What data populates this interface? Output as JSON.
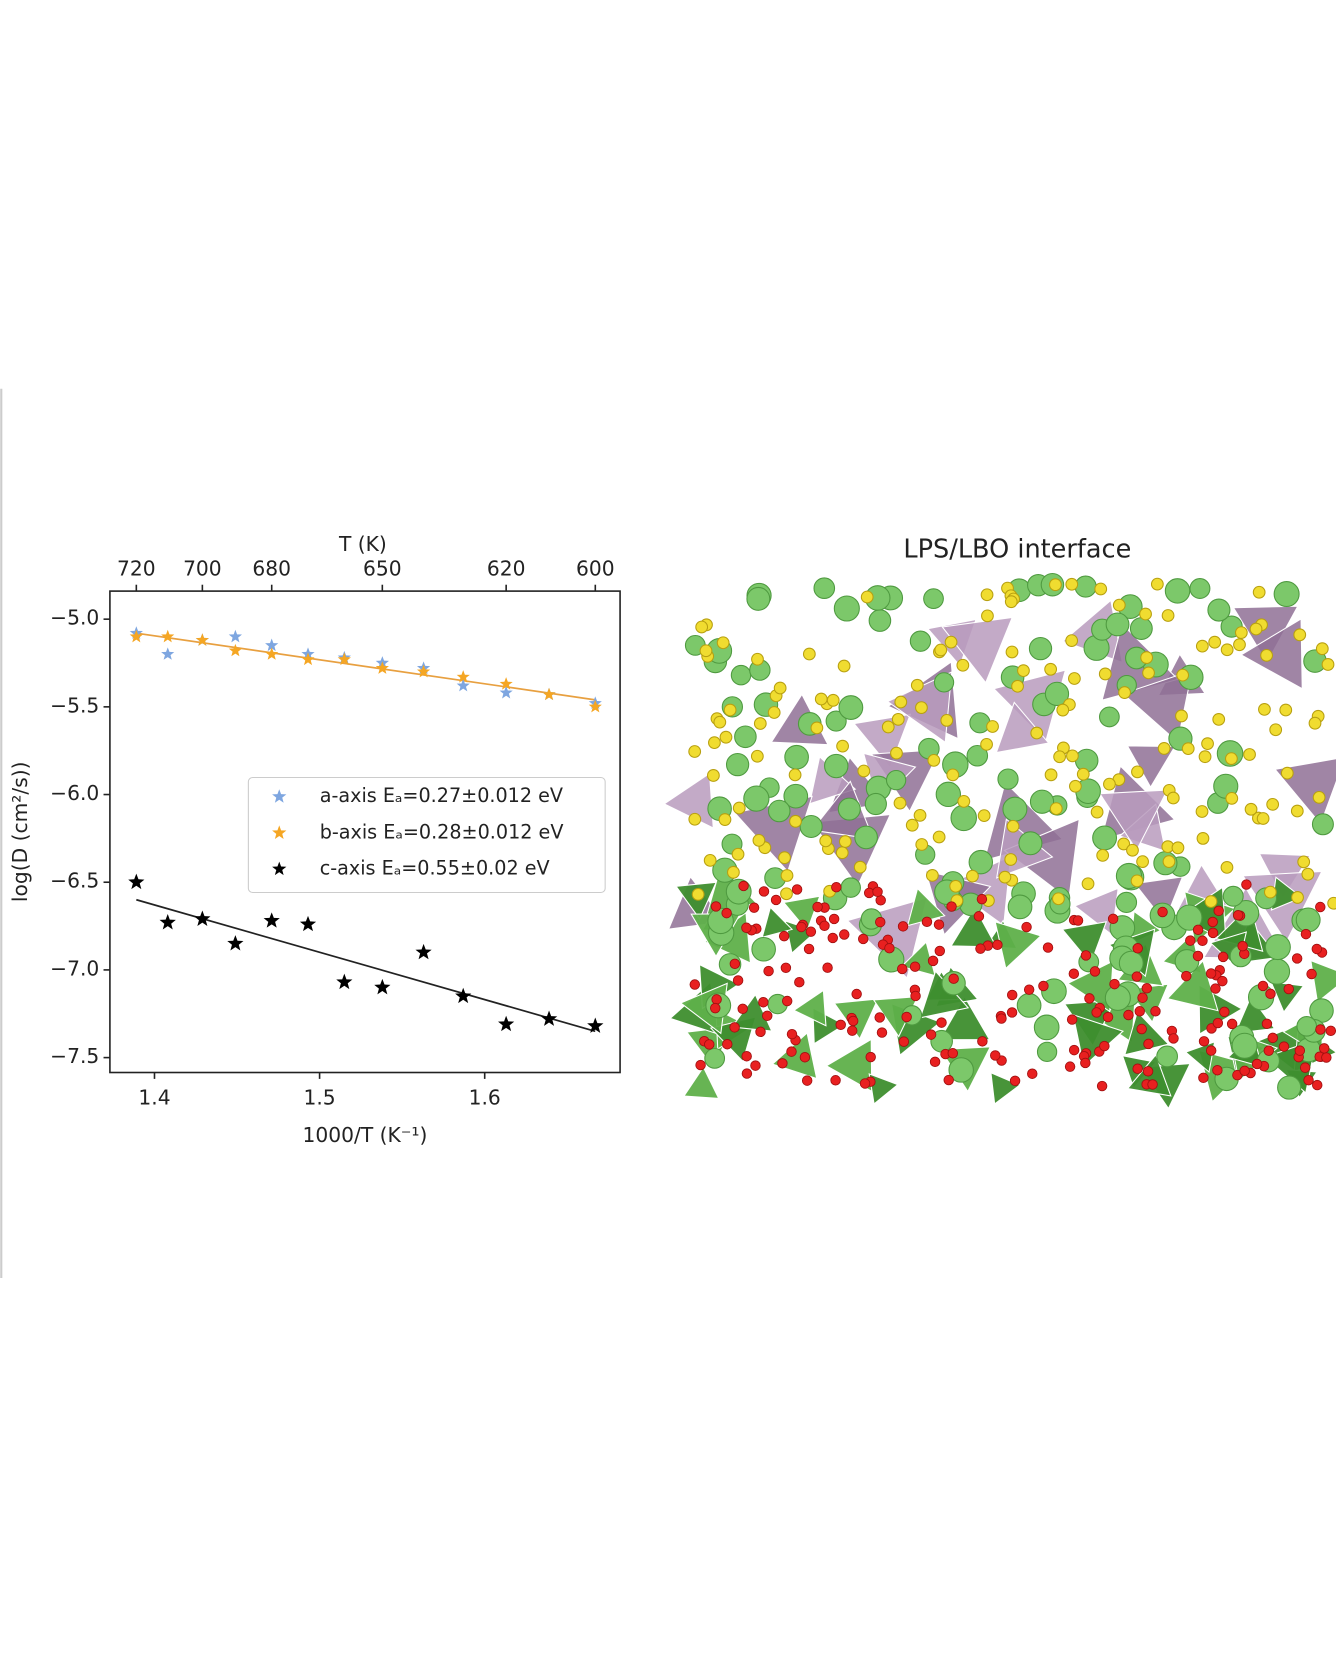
{
  "chart_data": {
    "type": "scatter",
    "x_label": "1000/T (K⁻¹)",
    "y_label": "log(D (cm²/s))",
    "top_x_label": "T (K)",
    "xlim": [
      1.373,
      1.682
    ],
    "ylim": [
      -7.585,
      -4.84
    ],
    "xticks": [
      1.4,
      1.5,
      1.6
    ],
    "yticks": [
      {
        "value": -5.0,
        "label": "−5.0"
      },
      {
        "value": -5.5,
        "label": "−5.5"
      },
      {
        "value": -6.0,
        "label": "−6.0"
      },
      {
        "value": -6.5,
        "label": "−6.5"
      },
      {
        "value": -7.0,
        "label": "−7.0"
      },
      {
        "value": -7.5,
        "label": "−7.5"
      }
    ],
    "top_xticks": [
      {
        "value": 1.389,
        "label": "720"
      },
      {
        "value": 1.429,
        "label": "700"
      },
      {
        "value": 1.471,
        "label": "680"
      },
      {
        "value": 1.538,
        "label": "650"
      },
      {
        "value": 1.613,
        "label": "620"
      },
      {
        "value": 1.667,
        "label": "600"
      }
    ],
    "x": [
      1.389,
      1.408,
      1.429,
      1.449,
      1.471,
      1.493,
      1.515,
      1.538,
      1.563,
      1.587,
      1.613,
      1.639,
      1.667
    ],
    "series": [
      {
        "name": "a-axis Eₐ=0.27±0.012 eV",
        "color": "#7ea6e0",
        "values": [
          -5.08,
          -5.2,
          -5.12,
          -5.1,
          -5.15,
          -5.2,
          -5.22,
          -5.25,
          -5.28,
          -5.38,
          -5.42,
          -5.43,
          -5.48
        ]
      },
      {
        "name": "b-axis Eₐ=0.28±0.012 eV",
        "color": "#f5a623",
        "values": [
          -5.1,
          -5.1,
          -5.12,
          -5.18,
          -5.2,
          -5.23,
          -5.23,
          -5.28,
          -5.3,
          -5.33,
          -5.37,
          -5.43,
          -5.5
        ]
      },
      {
        "name": "c-axis Eₐ=0.55±0.02 eV",
        "color": "#000000",
        "values": [
          -6.5,
          -6.73,
          -6.71,
          -6.85,
          -6.72,
          -6.74,
          -7.07,
          -7.1,
          -6.9,
          -7.15,
          -7.31,
          -7.28,
          -7.32
        ]
      }
    ],
    "fits": [
      {
        "color": "#e8a040",
        "x": [
          1.389,
          1.667
        ],
        "values": [
          -5.08,
          -5.46
        ]
      },
      {
        "color": "#222222",
        "x": [
          1.389,
          1.667
        ],
        "values": [
          -6.6,
          -7.35
        ]
      }
    ],
    "image_title": "LPS/LBO interface"
  }
}
